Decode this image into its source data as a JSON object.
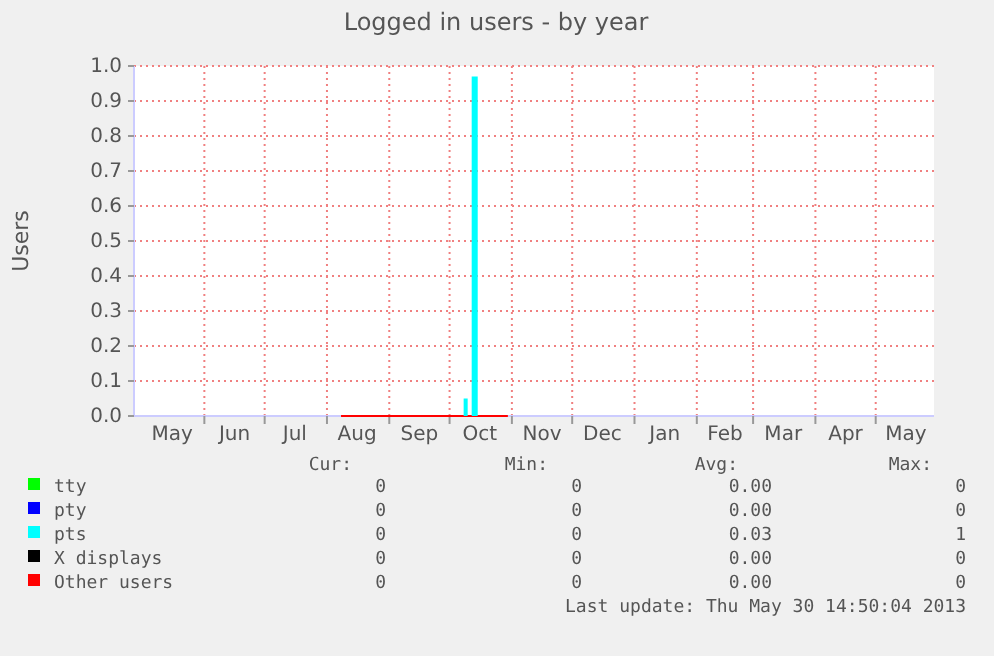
{
  "chart_data": {
    "type": "area",
    "title": "Logged in users - by year",
    "ylabel": "Users",
    "grid": true,
    "legend": "bottom",
    "xlim": [
      "2012-04-27",
      "2013-05-30"
    ],
    "xticks": [
      {
        "value": "2012-05-16",
        "label": "May"
      },
      {
        "value": "2012-06-01",
        "label": null
      },
      {
        "value": "2012-06-16",
        "label": "Jun"
      },
      {
        "value": "2012-07-01",
        "label": null
      },
      {
        "value": "2012-07-16",
        "label": "Jul"
      },
      {
        "value": "2012-08-01",
        "label": null
      },
      {
        "value": "2012-08-16",
        "label": "Aug"
      },
      {
        "value": "2012-09-01",
        "label": null
      },
      {
        "value": "2012-09-16",
        "label": "Sep"
      },
      {
        "value": "2012-10-01",
        "label": null
      },
      {
        "value": "2012-10-16",
        "label": "Oct"
      },
      {
        "value": "2012-11-01",
        "label": null
      },
      {
        "value": "2012-11-16",
        "label": "Nov"
      },
      {
        "value": "2012-12-01",
        "label": null
      },
      {
        "value": "2012-12-16",
        "label": "Dec"
      },
      {
        "value": "2013-01-01",
        "label": null
      },
      {
        "value": "2013-01-16",
        "label": "Jan"
      },
      {
        "value": "2013-02-01",
        "label": null
      },
      {
        "value": "2013-02-15",
        "label": "Feb"
      },
      {
        "value": "2013-03-01",
        "label": null
      },
      {
        "value": "2013-03-16",
        "label": "Mar"
      },
      {
        "value": "2013-04-01",
        "label": null
      },
      {
        "value": "2013-04-16",
        "label": "Apr"
      },
      {
        "value": "2013-05-01",
        "label": null
      },
      {
        "value": "2013-05-16",
        "label": "May"
      }
    ],
    "ylim": [
      0,
      1
    ],
    "yticks": [
      {
        "value": 0,
        "label": "0.0"
      },
      {
        "value": 0.1,
        "label": "0.1"
      },
      {
        "value": 0.2,
        "label": "0.2"
      },
      {
        "value": 0.3,
        "label": "0.3"
      },
      {
        "value": 0.4,
        "label": "0.4"
      },
      {
        "value": 0.5,
        "label": "0.5"
      },
      {
        "value": 0.6,
        "label": "0.6"
      },
      {
        "value": 0.7,
        "label": "0.7"
      },
      {
        "value": 0.8,
        "label": "0.8"
      },
      {
        "value": 0.9,
        "label": "0.9"
      },
      {
        "value": 1,
        "label": "1.0"
      }
    ],
    "x": [
      "2012-08-08",
      "2012-10-30"
    ],
    "series": [
      {
        "name": "tty",
        "color": "#00ff00",
        "values": [
          null,
          null
        ]
      },
      {
        "name": "pty",
        "color": "#0000ff",
        "values": [
          null,
          null
        ]
      },
      {
        "name": "pts",
        "color": "#00ffff",
        "x": [
          "2012-10-08",
          "2012-10-09",
          "2012-10-10",
          "2012-10-11",
          "2012-10-12",
          "2012-10-13",
          "2012-10-14",
          "2012-10-15"
        ],
        "values": [
          0.05,
          0.05,
          0.05,
          null,
          0.97,
          0.97,
          0.97,
          0.97
        ]
      },
      {
        "name": "X displays",
        "color": "#000000",
        "values": [
          null,
          null
        ]
      },
      {
        "name": "Other users",
        "type": "line",
        "color": "#ff0000",
        "values": [
          0,
          0
        ]
      }
    ],
    "annotations": [
      "Cur:",
      "Min:",
      "Avg:",
      "Max:",
      "0",
      "0",
      "0.00",
      "0",
      "0",
      "0",
      "0.00",
      "0",
      "0",
      "0",
      "0.03",
      "1",
      "0",
      "0",
      "0.00",
      "0",
      "0",
      "0",
      "0.00",
      "0",
      "Last update: Thu May 30 14:50:04 2013"
    ]
  }
}
